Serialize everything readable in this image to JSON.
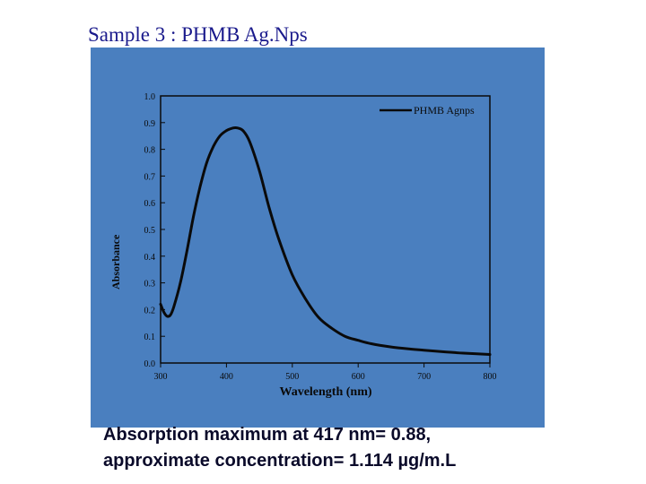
{
  "slide": {
    "title": "Sample 3 : PHMB Ag.Nps",
    "caption_line1": "Absorption maximum at 417 nm= 0.88,",
    "caption_line2": "approximate concentration= 1.114 µg/m.L"
  },
  "colors": {
    "panel_background": "#4a7fbf",
    "curve": "#0a0a0a",
    "title_text": "#1a1a8c",
    "caption_text": "#0a0a2a"
  },
  "chart_data": {
    "type": "line",
    "title": "",
    "xlabel": "Wavelength (nm)",
    "ylabel": "Absorbance",
    "xlim": [
      300,
      800
    ],
    "ylim": [
      0.0,
      1.0
    ],
    "x_ticks": [
      "300",
      "400",
      "500",
      "600",
      "700",
      "800"
    ],
    "y_ticks": [
      "0.0",
      "0.1",
      "0.2",
      "0.3",
      "0.4",
      "0.5",
      "0.6",
      "0.7",
      "0.8",
      "0.9",
      "1.0"
    ],
    "grid": false,
    "legend_position": "top-right",
    "series": [
      {
        "name": "PHMB Agnps",
        "x": [
          300,
          305,
          310,
          315,
          320,
          330,
          340,
          350,
          360,
          370,
          380,
          390,
          400,
          410,
          417,
          425,
          435,
          450,
          465,
          480,
          500,
          520,
          540,
          560,
          580,
          600,
          620,
          650,
          680,
          700,
          730,
          760,
          800
        ],
        "y": [
          0.22,
          0.19,
          0.175,
          0.18,
          0.21,
          0.3,
          0.42,
          0.55,
          0.66,
          0.75,
          0.81,
          0.85,
          0.87,
          0.88,
          0.88,
          0.87,
          0.83,
          0.72,
          0.58,
          0.46,
          0.33,
          0.24,
          0.17,
          0.13,
          0.1,
          0.085,
          0.072,
          0.06,
          0.052,
          0.048,
          0.042,
          0.037,
          0.032
        ]
      }
    ]
  }
}
